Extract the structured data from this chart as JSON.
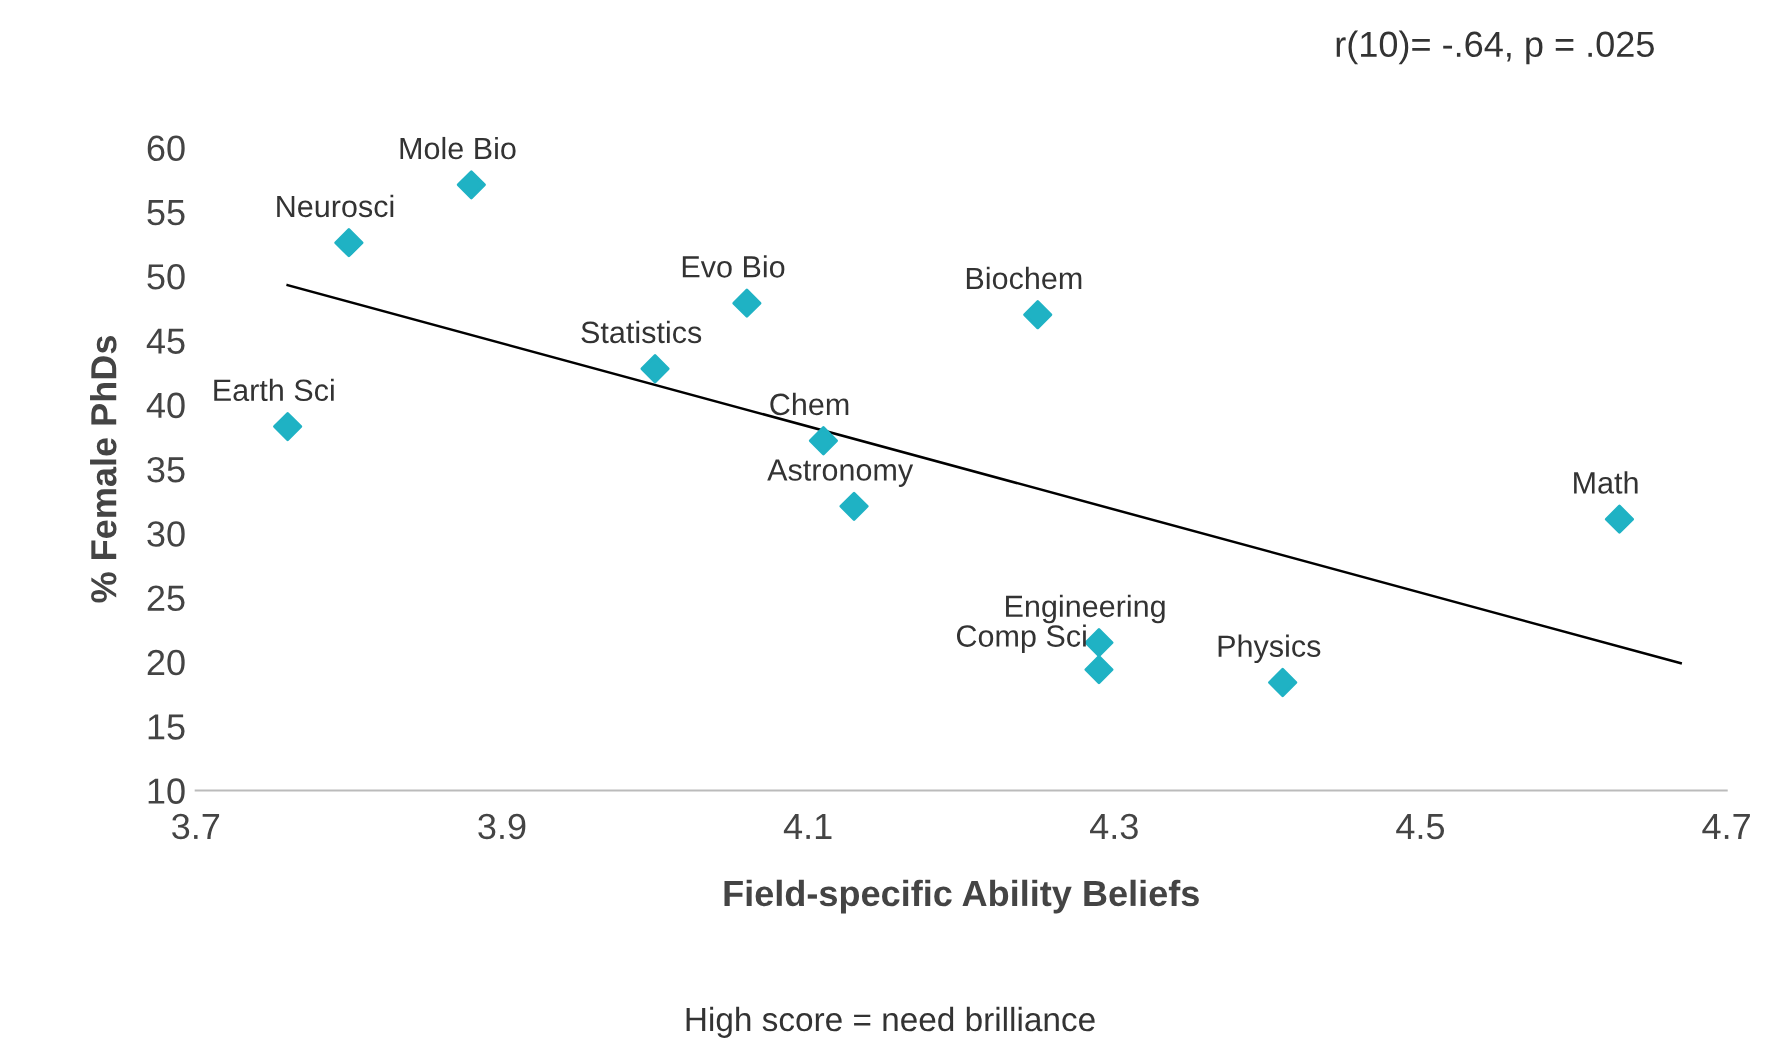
{
  "chart_data": {
    "type": "scatter",
    "xlabel": "Field-specific Ability Beliefs",
    "ylabel": "% Female PhDs",
    "series": [
      {
        "color": "#1fb2c4",
        "x": [
          3.76,
          3.8,
          3.88,
          4.0,
          4.06,
          4.11,
          4.13,
          4.25,
          4.29,
          4.29,
          4.41,
          4.63
        ],
        "values": [
          38.3,
          52.6,
          57.1,
          42.8,
          47.9,
          37.2,
          32.1,
          47.0,
          21.5,
          19.4,
          18.4,
          31.1
        ]
      },
      {
        "type": "line",
        "marker": "none",
        "color": "#000000",
        "x": [
          3.76,
          4.67
        ],
        "values": [
          49.3,
          19.9
        ]
      }
    ],
    "marker": "diamond",
    "xlim": [
      3.7,
      4.7
    ],
    "xticks": [
      3.7,
      3.9,
      4.1,
      4.3,
      4.5,
      4.7
    ],
    "ylim": [
      10,
      60
    ],
    "yticks": [
      10,
      15,
      20,
      25,
      30,
      35,
      40,
      45,
      50,
      55,
      60
    ],
    "grid": false,
    "legend": false,
    "annotations": [
      {
        "text": "Earth Sci",
        "x": 3.76,
        "y": 38.3
      },
      {
        "text": "Neurosci",
        "x": 3.8,
        "y": 52.6
      },
      {
        "text": "Mole Bio",
        "x": 3.88,
        "y": 57.1
      },
      {
        "text": "Statistics",
        "x": 4.0,
        "y": 42.8
      },
      {
        "text": "Evo Bio",
        "x": 4.06,
        "y": 47.9
      },
      {
        "text": "Chem",
        "x": 4.11,
        "y": 37.2
      },
      {
        "text": "Astronomy",
        "x": 4.13,
        "y": 32.1
      },
      {
        "text": "Biochem",
        "x": 4.25,
        "y": 47.0
      },
      {
        "text": "Engineering",
        "x": 4.29,
        "y": 21.5
      },
      {
        "text": "Comp Sci",
        "x": 4.29,
        "y": 19.4
      },
      {
        "text": "Physics",
        "x": 4.41,
        "y": 18.4
      },
      {
        "text": "Math",
        "x": 4.63,
        "y": 31.1
      },
      "r(10)= -.64, p = .025",
      "High score = need brilliance"
    ]
  }
}
